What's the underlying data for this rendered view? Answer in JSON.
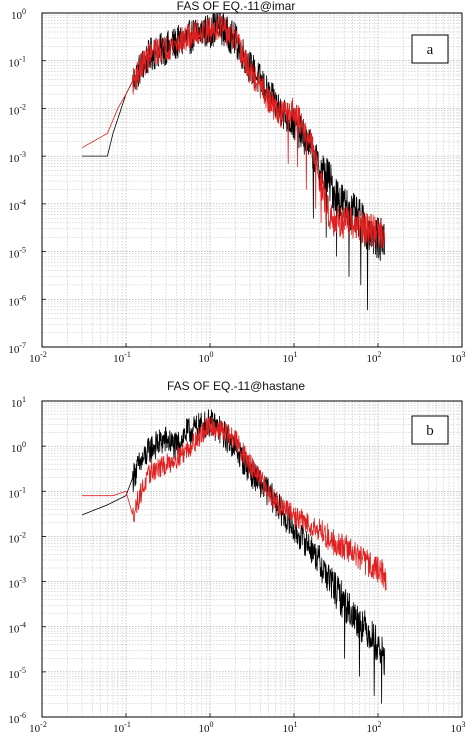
{
  "chart_data": [
    {
      "type": "line",
      "title": "FAS OF EQ.-11@imar",
      "panel_tag": "a",
      "xscale": "log",
      "yscale": "log",
      "xlim": [
        0.01,
        1000
      ],
      "ylim": [
        1e-07,
        1
      ],
      "grid": true,
      "x_tick_labels": [
        "10",
        "10",
        "10",
        "10",
        "10",
        "10"
      ],
      "x_tick_exponents": [
        "-2",
        "-1",
        "0",
        "1",
        "2",
        "3"
      ],
      "y_tick_labels": [
        "10",
        "10",
        "10",
        "10",
        "10",
        "10",
        "10",
        "10"
      ],
      "y_tick_exponents": [
        "-7",
        "-6",
        "-5",
        "-4",
        "-3",
        "-2",
        "-1",
        "0"
      ],
      "series": [
        {
          "color": "#000000",
          "points": [
            [
              0.03,
              0.001
            ],
            [
              0.06,
              0.001
            ],
            [
              0.07,
              0.003
            ],
            [
              0.1,
              0.02
            ],
            [
              0.15,
              0.08
            ],
            [
              0.2,
              0.15
            ],
            [
              0.3,
              0.2
            ],
            [
              0.4,
              0.25
            ],
            [
              0.6,
              0.35
            ],
            [
              0.8,
              0.45
            ],
            [
              1.0,
              0.45
            ],
            [
              1.3,
              0.6
            ],
            [
              1.6,
              0.4
            ],
            [
              2.0,
              0.3
            ],
            [
              3.0,
              0.08
            ],
            [
              4.0,
              0.04
            ],
            [
              5.0,
              0.02
            ],
            [
              7.0,
              0.01
            ],
            [
              10.0,
              0.005
            ],
            [
              15.0,
              0.002
            ],
            [
              20.0,
              0.0006
            ],
            [
              25.0,
              0.0004
            ],
            [
              30.0,
              0.0002
            ],
            [
              40.0,
              0.0001
            ],
            [
              60.0,
              5e-05
            ],
            [
              80.0,
              3e-05
            ],
            [
              100.0,
              2e-05
            ],
            [
              120.0,
              2e-05
            ]
          ],
          "ripple": 0.45,
          "drops": [
            [
              17.0,
              5e-05
            ],
            [
              24.0,
              2e-05
            ],
            [
              32.0,
              8e-06
            ],
            [
              45.0,
              3e-06
            ],
            [
              62.0,
              2e-06
            ],
            [
              75.0,
              6e-07
            ]
          ]
        },
        {
          "color": "#e02020",
          "points": [
            [
              0.03,
              0.0015
            ],
            [
              0.06,
              0.003
            ],
            [
              0.08,
              0.01
            ],
            [
              0.1,
              0.02
            ],
            [
              0.15,
              0.08
            ],
            [
              0.2,
              0.15
            ],
            [
              0.3,
              0.2
            ],
            [
              0.4,
              0.25
            ],
            [
              0.6,
              0.35
            ],
            [
              0.8,
              0.45
            ],
            [
              1.0,
              0.45
            ],
            [
              1.3,
              0.6
            ],
            [
              1.6,
              0.4
            ],
            [
              2.0,
              0.3
            ],
            [
              3.0,
              0.06
            ],
            [
              4.0,
              0.03
            ],
            [
              5.0,
              0.015
            ],
            [
              7.0,
              0.008
            ],
            [
              10.0,
              0.01
            ],
            [
              13.0,
              0.004
            ],
            [
              16.0,
              0.002
            ],
            [
              20.0,
              0.0004
            ],
            [
              25.0,
              8e-05
            ],
            [
              30.0,
              5e-05
            ],
            [
              50.0,
              4e-05
            ],
            [
              80.0,
              3e-05
            ],
            [
              120.0,
              2.5e-05
            ]
          ],
          "ripple": 0.35,
          "drops": [
            [
              8.5,
              0.0007
            ],
            [
              11.0,
              0.0006
            ],
            [
              14.0,
              0.0002
            ],
            [
              18.0,
              8e-05
            ],
            [
              21.0,
              4e-05
            ]
          ]
        }
      ]
    },
    {
      "type": "line",
      "title": "FAS OF EQ.-11@hastane",
      "panel_tag": "b",
      "xscale": "log",
      "yscale": "log",
      "xlim": [
        0.01,
        1000
      ],
      "ylim": [
        1e-06,
        10
      ],
      "grid": true,
      "x_tick_labels": [
        "10",
        "10",
        "10",
        "10",
        "10",
        "10"
      ],
      "x_tick_exponents": [
        "-2",
        "-1",
        "0",
        "1",
        "2",
        "3"
      ],
      "y_tick_labels": [
        "10",
        "10",
        "10",
        "10",
        "10",
        "10",
        "10",
        "10"
      ],
      "y_tick_exponents": [
        "-6",
        "-5",
        "-4",
        "-3",
        "-2",
        "-1",
        "0",
        "1"
      ],
      "series": [
        {
          "color": "#000000",
          "points": [
            [
              0.03,
              0.03
            ],
            [
              0.06,
              0.05
            ],
            [
              0.1,
              0.08
            ],
            [
              0.13,
              0.3
            ],
            [
              0.2,
              1.0
            ],
            [
              0.3,
              1.5
            ],
            [
              0.4,
              1.0
            ],
            [
              0.5,
              2.0
            ],
            [
              0.8,
              3.0
            ],
            [
              1.0,
              3.5
            ],
            [
              1.3,
              2.5
            ],
            [
              2.0,
              1.0
            ],
            [
              3.0,
              0.3
            ],
            [
              5.0,
              0.1
            ],
            [
              7.0,
              0.04
            ],
            [
              10.0,
              0.015
            ],
            [
              15.0,
              0.007
            ],
            [
              20.0,
              0.003
            ],
            [
              30.0,
              0.0008
            ],
            [
              50.0,
              0.0002
            ],
            [
              80.0,
              8e-05
            ],
            [
              100.0,
              4e-05
            ],
            [
              120.0,
              2e-05
            ]
          ],
          "ripple": 0.4,
          "drops": [
            [
              40.0,
              2e-05
            ],
            [
              60.0,
              8e-06
            ],
            [
              90.0,
              3e-06
            ],
            [
              110.0,
              2e-06
            ]
          ]
        },
        {
          "color": "#e02020",
          "points": [
            [
              0.03,
              0.08
            ],
            [
              0.07,
              0.08
            ],
            [
              0.1,
              0.1
            ],
            [
              0.12,
              0.03
            ],
            [
              0.15,
              0.1
            ],
            [
              0.2,
              0.3
            ],
            [
              0.3,
              0.4
            ],
            [
              0.5,
              0.8
            ],
            [
              0.8,
              2.0
            ],
            [
              1.0,
              3.0
            ],
            [
              1.3,
              2.5
            ],
            [
              2.0,
              1.5
            ],
            [
              3.0,
              0.4
            ],
            [
              5.0,
              0.1
            ],
            [
              7.0,
              0.05
            ],
            [
              10.0,
              0.03
            ],
            [
              15.0,
              0.02
            ],
            [
              20.0,
              0.015
            ],
            [
              30.0,
              0.008
            ],
            [
              50.0,
              0.005
            ],
            [
              70.0,
              0.003
            ],
            [
              100.0,
              0.002
            ],
            [
              120.0,
              0.0015
            ],
            [
              125.0,
              0.0008
            ]
          ],
          "ripple": 0.3,
          "drops": []
        }
      ]
    }
  ]
}
